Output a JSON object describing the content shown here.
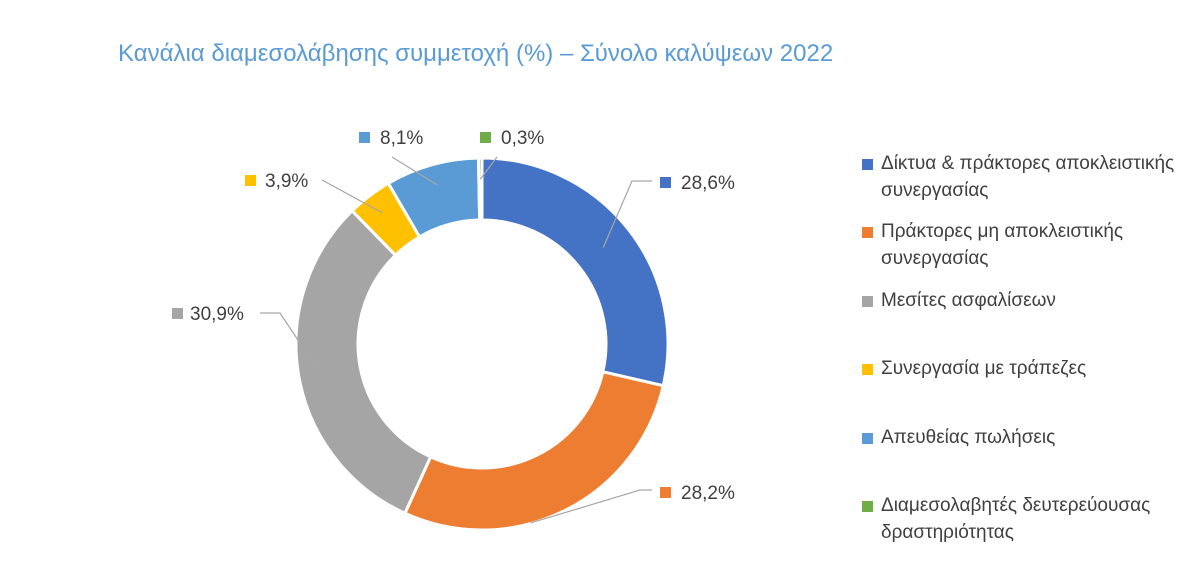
{
  "chart_data": {
    "type": "pie",
    "title": "Κανάλια διαμεσολάβησης συμμετοχή (%) – Σύνολο καλύψεων 2022",
    "categories": [
      "Δίκτυα & πράκτορες αποκλειστικής συνεργασίας",
      "Πράκτορες μη αποκλειστικής συνεργασίας",
      "Μεσίτες ασφαλίσεων",
      "Συνεργασία με τράπεζες",
      "Απευθείας πωλήσεις",
      "Διαμεσολαβητές δευτερεύουσας δραστηριότητας"
    ],
    "values": [
      28.6,
      28.2,
      30.9,
      3.9,
      8.1,
      0.3
    ],
    "data_labels": [
      "28,6%",
      "28,2%",
      "30,9%",
      "3,9%",
      "8,1%",
      "0,3%"
    ],
    "colors": [
      "#4472c4",
      "#ed7d31",
      "#a5a5a5",
      "#ffc000",
      "#5b9bd5",
      "#70ad47"
    ],
    "donut": true,
    "legend_position": "right"
  },
  "legend": [
    {
      "label": "Δίκτυα & πράκτορες αποκλειστικής συνεργασίας"
    },
    {
      "label": "Πράκτορες μη αποκλειστικής συνεργασίας"
    },
    {
      "label": "Μεσίτες ασφαλίσεων"
    },
    {
      "label": "Συνεργασία με τράπεζες"
    },
    {
      "label": "Απευθείας πωλήσεις"
    },
    {
      "label": "Διαμεσολαβητές δευτερεύουσας δραστηριότητας"
    }
  ]
}
